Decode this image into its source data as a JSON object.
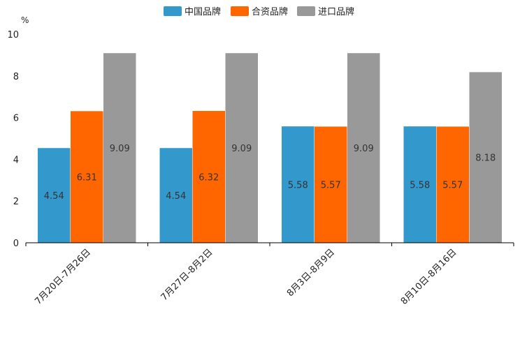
{
  "chart_data": {
    "type": "bar",
    "title": "",
    "ylabel": "%",
    "xlabel": "",
    "ylim": [
      0,
      10
    ],
    "yticks": [
      0,
      2,
      4,
      6,
      8,
      10
    ],
    "grid": false,
    "legend_position": "top-center",
    "categories": [
      "7月20日-7月26日",
      "7月27日-8月2日",
      "8月3日-8月9日",
      "8月10日-8月16日"
    ],
    "series": [
      {
        "name": "中国品牌",
        "color": "#3399cc",
        "values": [
          4.54,
          4.54,
          5.58,
          5.58
        ]
      },
      {
        "name": "合资品牌",
        "color": "#ff6600",
        "values": [
          6.31,
          6.32,
          5.57,
          5.57
        ]
      },
      {
        "name": "进口品牌",
        "color": "#999999",
        "values": [
          9.09,
          9.09,
          9.09,
          8.18
        ]
      }
    ]
  }
}
